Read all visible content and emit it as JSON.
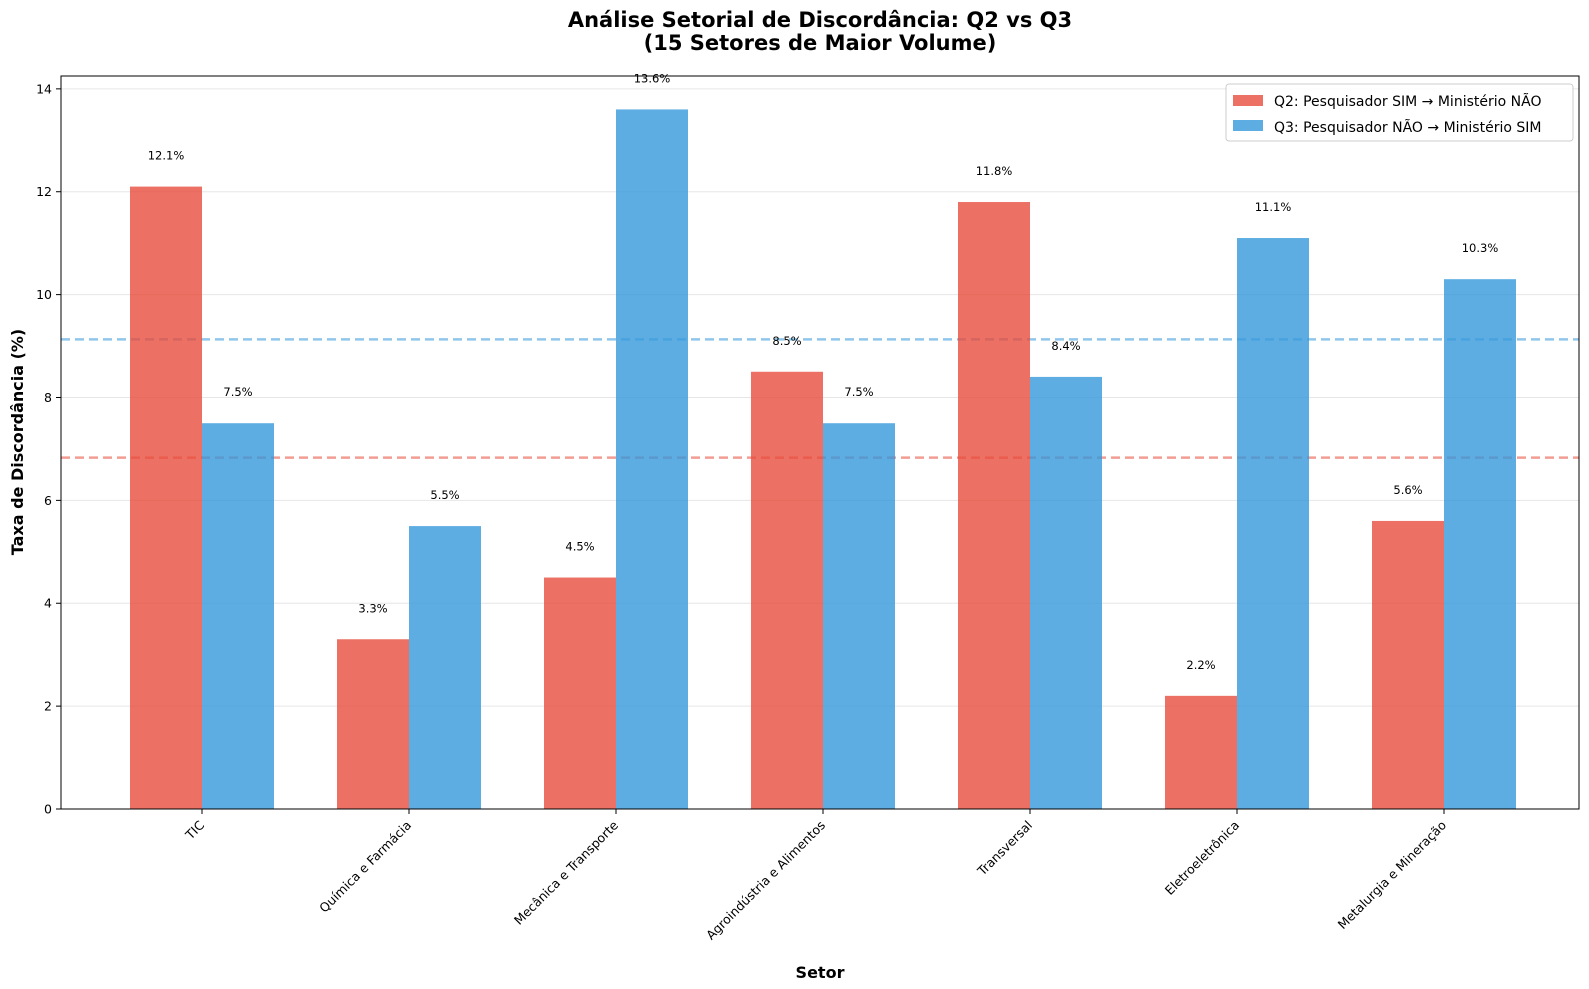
{
  "chart_data": {
    "type": "bar",
    "title": "Análise Setorial de Discordância: Q2 vs Q3",
    "subtitle": "(15 Setores de Maior Volume)",
    "xlabel": "Setor",
    "ylabel": "Taxa de Discordância (%)",
    "ylim": [
      0,
      14.25
    ],
    "yticks": [
      0,
      2,
      4,
      6,
      8,
      10,
      12,
      14
    ],
    "grid": true,
    "legend_position": "top-right",
    "categories": [
      "TIC",
      "Química e Farmácia",
      "Mecânica e Transporte",
      "Agroindústria e Alimentos",
      "Transversal",
      "Eletroeletrônica",
      "Metalurgia e Mineração"
    ],
    "series": [
      {
        "name": "Q2: Pesquisador SIM → Ministério NÃO",
        "color": "#e74c3c",
        "values": [
          12.1,
          3.3,
          4.5,
          8.5,
          11.8,
          2.2,
          5.6
        ],
        "labels": [
          "12.1%",
          "3.3%",
          "4.5%",
          "8.5%",
          "11.8%",
          "2.2%",
          "5.6%"
        ]
      },
      {
        "name": "Q3: Pesquisador NÃO → Ministério SIM",
        "color": "#3498db",
        "values": [
          7.5,
          5.5,
          13.6,
          7.5,
          8.4,
          11.1,
          10.3
        ],
        "labels": [
          "7.5%",
          "5.5%",
          "13.6%",
          "7.5%",
          "8.4%",
          "11.1%",
          "10.3%"
        ]
      }
    ],
    "reference_lines": [
      {
        "series": "Q2",
        "value": 6.83,
        "color": "#e74c3c"
      },
      {
        "series": "Q3",
        "value": 9.13,
        "color": "#3498db"
      }
    ]
  }
}
